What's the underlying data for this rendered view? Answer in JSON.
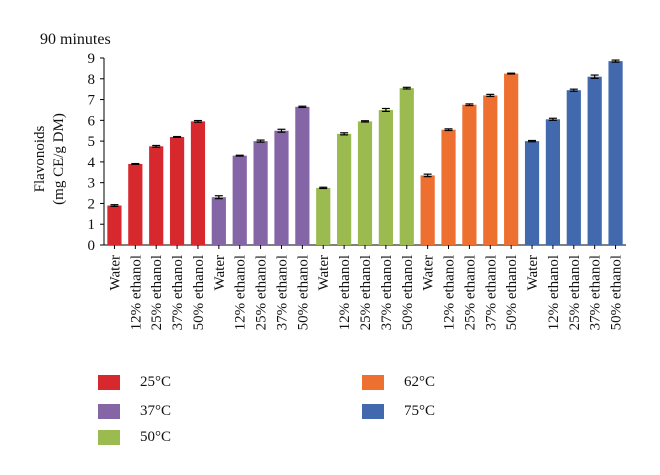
{
  "chart_data": {
    "type": "bar",
    "title": "90 minutes",
    "ylabel_line1": "Flavonoids",
    "ylabel_line2": "(mg CE/g DM)",
    "ylim": [
      0,
      9
    ],
    "yticks": [
      0,
      1,
      2,
      3,
      4,
      5,
      6,
      7,
      8,
      9
    ],
    "categories": [
      "Water",
      "12% ethanol",
      "25% ethanol",
      "37% ethanol",
      "50% ethanol"
    ],
    "series": [
      {
        "name": "25°C",
        "color": "#d7282d",
        "values": [
          1.9,
          3.9,
          4.75,
          5.2,
          5.95
        ],
        "errors": [
          0.04,
          0.02,
          0.04,
          0.02,
          0.04
        ]
      },
      {
        "name": "37°C",
        "color": "#8466a6",
        "values": [
          2.3,
          4.3,
          5.0,
          5.5,
          6.65
        ],
        "errors": [
          0.07,
          0.02,
          0.05,
          0.07,
          0.03
        ]
      },
      {
        "name": "50°C",
        "color": "#9bbb50",
        "values": [
          2.75,
          5.35,
          5.95,
          6.5,
          7.55
        ],
        "errors": [
          0.03,
          0.05,
          0.03,
          0.07,
          0.04
        ]
      },
      {
        "name": "62°C",
        "color": "#ee7031",
        "values": [
          3.35,
          5.55,
          6.75,
          7.2,
          8.25
        ],
        "errors": [
          0.06,
          0.04,
          0.04,
          0.05,
          0.02
        ]
      },
      {
        "name": "75°C",
        "color": "#4268ad",
        "values": [
          5.0,
          6.05,
          7.45,
          8.1,
          8.85
        ],
        "errors": [
          0.03,
          0.05,
          0.05,
          0.08,
          0.05
        ]
      }
    ],
    "legend": [
      "25°C",
      "37°C",
      "50°C",
      "62°C",
      "75°C"
    ]
  }
}
